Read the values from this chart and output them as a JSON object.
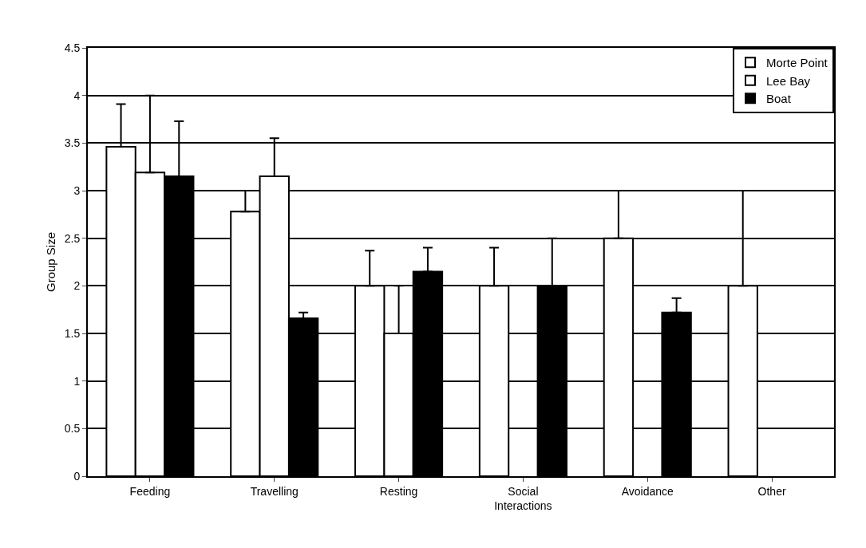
{
  "chart_data": {
    "type": "bar",
    "ylabel": "Group Size",
    "categories": [
      "Feeding",
      "Travelling",
      "Resting",
      "Social Interactions",
      "Avoidance",
      "Other"
    ],
    "series": [
      {
        "name": "Morte Point",
        "color": "#ffffff",
        "values": [
          3.46,
          2.78,
          2.0,
          2.0,
          2.5,
          2.0
        ],
        "errors": [
          [
            3.46,
            3.91
          ],
          [
            2.78,
            3.0
          ],
          [
            2.0,
            2.37
          ],
          [
            2.0,
            2.4
          ],
          [
            2.5,
            3.0
          ],
          [
            2.0,
            3.0
          ]
        ]
      },
      {
        "name": "Lee Bay",
        "color": "#ffffff",
        "values": [
          3.19,
          3.15,
          1.5,
          null,
          null,
          null
        ],
        "errors": [
          [
            3.19,
            4.0
          ],
          [
            3.15,
            3.55
          ],
          [
            1.5,
            2.0
          ],
          null,
          null,
          null
        ]
      },
      {
        "name": "Boat",
        "color": "#000000",
        "values": [
          3.15,
          1.66,
          2.15,
          2.0,
          1.72,
          null
        ],
        "errors": [
          [
            3.15,
            3.73
          ],
          [
            1.66,
            1.72
          ],
          [
            2.15,
            2.4
          ],
          [
            2.0,
            2.5
          ],
          [
            1.72,
            1.87
          ],
          null
        ]
      }
    ],
    "ylim": [
      0,
      4.5
    ],
    "yticks": [
      0,
      0.5,
      1,
      1.5,
      2,
      2.5,
      3,
      3.5,
      4,
      4.5
    ],
    "grid": "y",
    "legend": "top right"
  }
}
